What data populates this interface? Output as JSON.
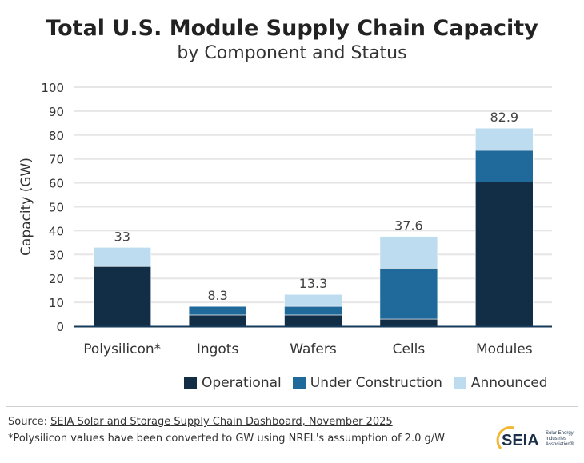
{
  "chart_data": {
    "type": "bar",
    "stacked": true,
    "title": "Total U.S. Module Supply Chain Capacity",
    "subtitle": "by Component and Status",
    "ylabel": "Capacity (GW)",
    "xlabel": "",
    "ylim": [
      0,
      100
    ],
    "yticks": [
      0,
      10,
      20,
      30,
      40,
      50,
      60,
      70,
      80,
      90,
      100
    ],
    "grid": true,
    "legend_position": "bottom-right",
    "categories": [
      "Polysilicon*",
      "Ingots",
      "Wafers",
      "Cells",
      "Modules"
    ],
    "series": [
      {
        "name": "Operational",
        "color": "#122e47",
        "values": [
          25,
          4.7,
          4.7,
          3,
          60.4
        ]
      },
      {
        "name": "Under Construction",
        "color": "#20699b",
        "values": [
          0,
          3.6,
          3.6,
          21.3,
          13.2
        ]
      },
      {
        "name": "Announced",
        "color": "#bedcf0",
        "values": [
          8,
          0,
          5,
          13.3,
          9.3
        ]
      }
    ],
    "totals": [
      "33",
      "8.3",
      "13.3",
      "37.6",
      "82.9"
    ]
  },
  "footer": {
    "source_prefix": "Source: ",
    "source_link": "SEIA Solar and Storage Supply Chain Dashboard, November 2025",
    "note": "*Polysilicon values have been converted to GW using NREL's assumption of 2.0 g/W"
  },
  "logo": {
    "text": "SEIA",
    "subtext": "Solar Energy Industries Association"
  }
}
